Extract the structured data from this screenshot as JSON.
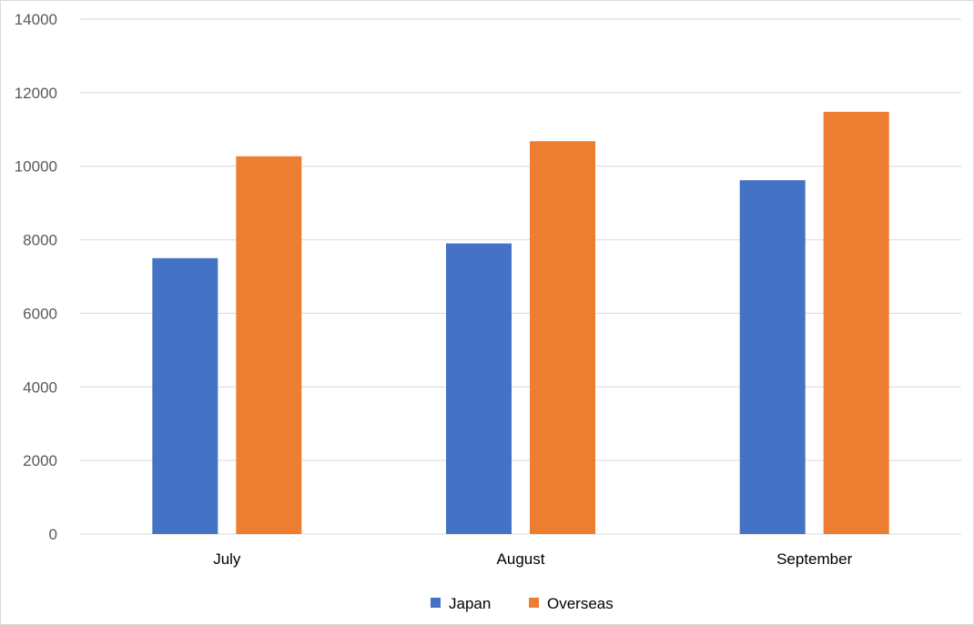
{
  "chart_data": {
    "type": "bar",
    "title": "",
    "xlabel": "",
    "ylabel": "",
    "categories": [
      "July",
      "August",
      "September"
    ],
    "series": [
      {
        "name": "Japan",
        "values": [
          7500,
          7900,
          9620
        ],
        "color": "#4472C4"
      },
      {
        "name": "Overseas",
        "values": [
          10270,
          10680,
          11480
        ],
        "color": "#ED7D31"
      }
    ],
    "ylim": [
      0,
      14000
    ],
    "yticks": [
      0,
      2000,
      4000,
      6000,
      8000,
      10000,
      12000,
      14000
    ],
    "grid": true,
    "legend_position": "bottom"
  }
}
